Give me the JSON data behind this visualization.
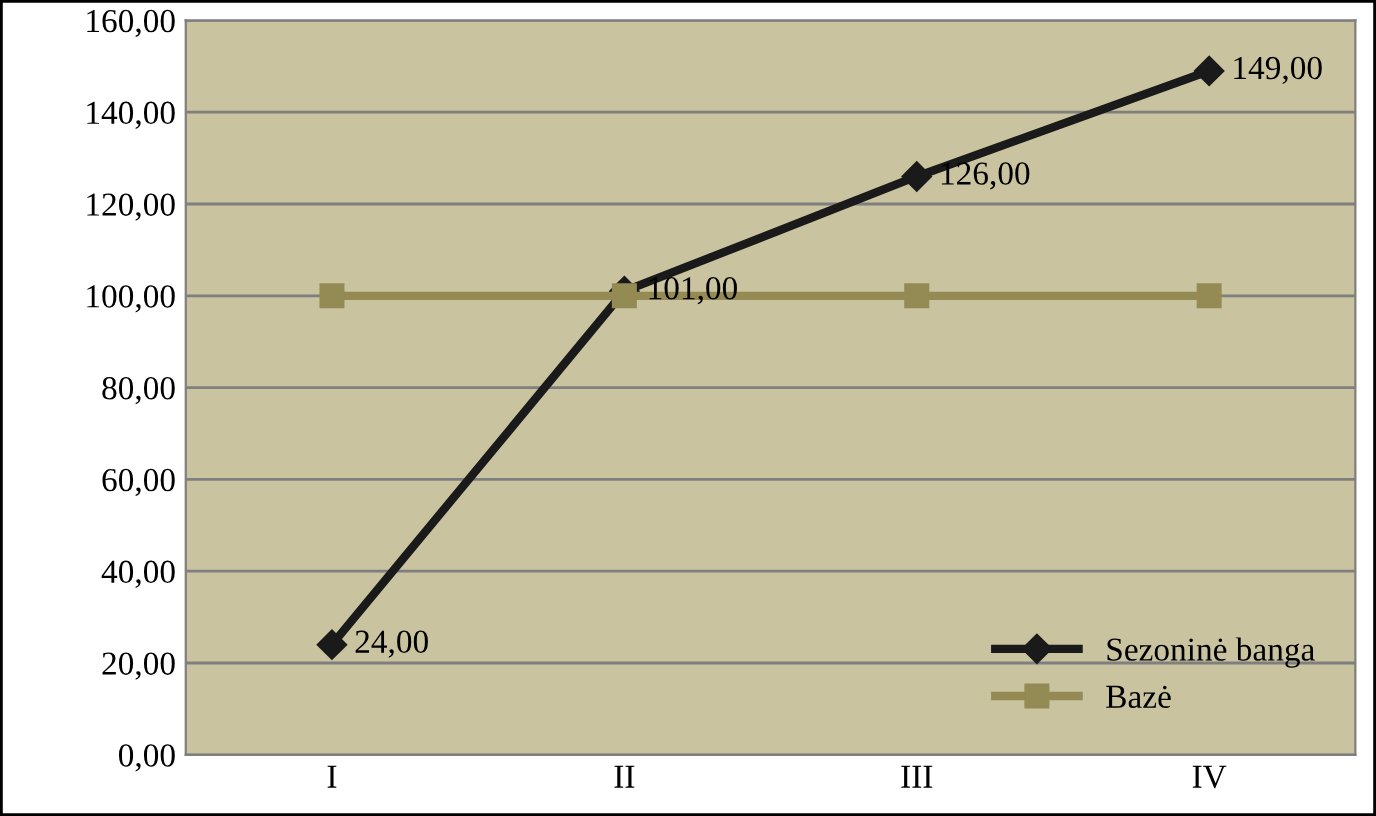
{
  "chart_data": {
    "type": "line",
    "categories": [
      "I",
      "II",
      "III",
      "IV"
    ],
    "series": [
      {
        "name": "Sezoninė banga",
        "color": "#1a1a1a",
        "marker": "diamond",
        "values": [
          24,
          101,
          126,
          149
        ],
        "value_labels": [
          "24,00",
          "101,00",
          "126,00",
          "149,00"
        ]
      },
      {
        "name": "Bazė",
        "color": "#948a54",
        "marker": "square",
        "values": [
          100,
          100,
          100,
          100
        ]
      }
    ],
    "ylim": [
      0,
      160
    ],
    "yticks": [
      {
        "value": 0,
        "label": "0,00"
      },
      {
        "value": 20,
        "label": "20,00"
      },
      {
        "value": 40,
        "label": "40,00"
      },
      {
        "value": 60,
        "label": "60,00"
      },
      {
        "value": 80,
        "label": "80,00"
      },
      {
        "value": 100,
        "label": "100,00"
      },
      {
        "value": 120,
        "label": "120,00"
      },
      {
        "value": 140,
        "label": "140,00"
      },
      {
        "value": 160,
        "label": "160,00"
      }
    ],
    "grid": "y",
    "legend": "bottom right",
    "line_style": "solid"
  }
}
